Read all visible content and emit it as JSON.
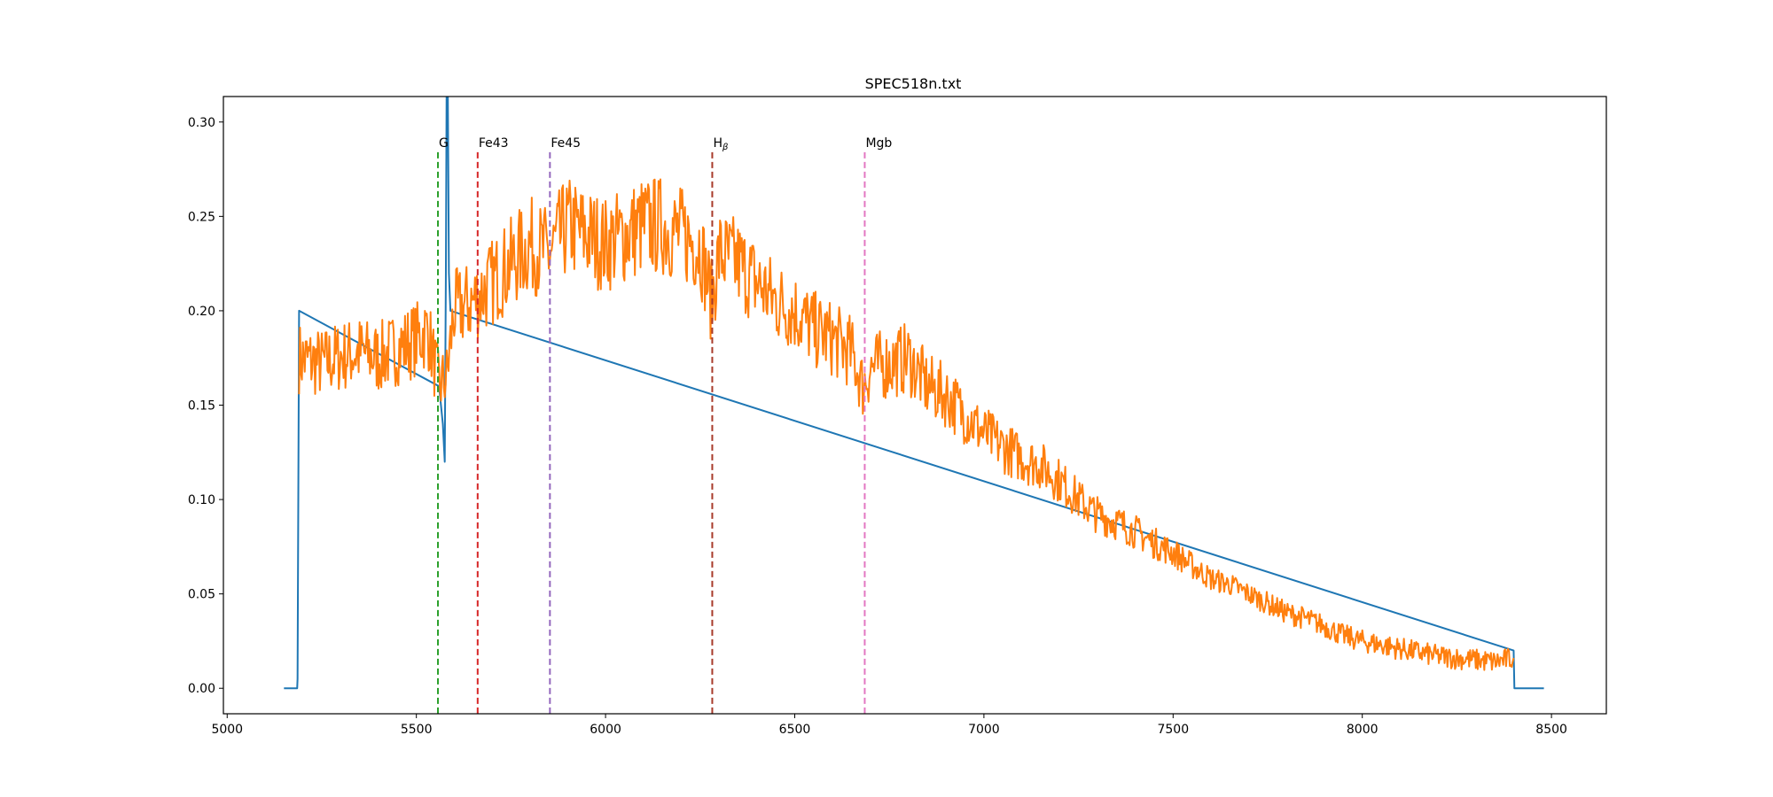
{
  "chart_data": {
    "type": "line",
    "title": "SPEC518n.txt",
    "xlabel": "",
    "ylabel": "",
    "xlim": [
      4990,
      8645
    ],
    "ylim": [
      -0.0135,
      0.3135
    ],
    "xticks": [
      5000,
      5500,
      6000,
      6500,
      7000,
      7500,
      8000,
      8500
    ],
    "xtick_labels": [
      "5000",
      "5500",
      "6000",
      "6500",
      "7000",
      "7500",
      "8000",
      "8500"
    ],
    "yticks": [
      0.0,
      0.05,
      0.1,
      0.15,
      0.2,
      0.25,
      0.3
    ],
    "ytick_labels": [
      "0.00",
      "0.05",
      "0.10",
      "0.15",
      "0.20",
      "0.25",
      "0.30"
    ],
    "grid": false,
    "series": [
      {
        "color": "#1f77b4",
        "x": [
          5150,
          5185,
          5186,
          5190,
          5560,
          5570,
          5575,
          5578,
          5580,
          5583,
          5586,
          5590,
          8400,
          8402,
          8480
        ],
        "y": [
          0.0,
          0.0,
          0.005,
          0.2,
          0.16,
          0.14,
          0.12,
          0.22,
          0.32,
          0.32,
          0.22,
          0.2,
          0.02,
          0.0,
          0.0
        ]
      },
      {
        "color": "#ff7f0e",
        "x": [
          5190,
          5250,
          5300,
          5350,
          5400,
          5450,
          5500,
          5530,
          5560,
          5580,
          5600,
          5650,
          5700,
          5750,
          5800,
          5850,
          5900,
          5950,
          6000,
          6050,
          6100,
          6150,
          6200,
          6250,
          6280,
          6300,
          6350,
          6400,
          6450,
          6500,
          6550,
          6600,
          6650,
          6680,
          6700,
          6750,
          6800,
          6850,
          6900,
          6950,
          7000,
          7050,
          7100,
          7150,
          7200,
          7250,
          7300,
          7350,
          7400,
          7450,
          7500,
          7550,
          7600,
          7650,
          7700,
          7750,
          7800,
          7850,
          7900,
          7950,
          8000,
          8050,
          8100,
          8150,
          8200,
          8250,
          8300,
          8350,
          8400
        ],
        "y": [
          0.175,
          0.172,
          0.176,
          0.178,
          0.175,
          0.18,
          0.185,
          0.19,
          0.16,
          0.165,
          0.2,
          0.205,
          0.215,
          0.225,
          0.235,
          0.23,
          0.245,
          0.24,
          0.235,
          0.24,
          0.245,
          0.245,
          0.24,
          0.235,
          0.205,
          0.23,
          0.225,
          0.215,
          0.205,
          0.2,
          0.19,
          0.185,
          0.178,
          0.16,
          0.17,
          0.172,
          0.175,
          0.16,
          0.155,
          0.145,
          0.135,
          0.128,
          0.122,
          0.118,
          0.11,
          0.1,
          0.092,
          0.088,
          0.083,
          0.077,
          0.072,
          0.065,
          0.058,
          0.055,
          0.05,
          0.045,
          0.04,
          0.037,
          0.033,
          0.028,
          0.025,
          0.023,
          0.021,
          0.019,
          0.017,
          0.016,
          0.015,
          0.014,
          0.016
        ]
      }
    ],
    "vlines": [
      {
        "label": "G",
        "x": 5557,
        "color": "#2ca02c"
      },
      {
        "label": "Fe43",
        "x": 5662,
        "color": "#d62728"
      },
      {
        "label": "Fe45",
        "x": 5853,
        "color": "#9467bd"
      },
      {
        "label": "H",
        "sub": "β",
        "x": 6282,
        "color": "#a83a2a"
      },
      {
        "label": "Mgb",
        "x": 6685,
        "color": "#e377c2"
      }
    ],
    "vline_top": 0.284
  }
}
